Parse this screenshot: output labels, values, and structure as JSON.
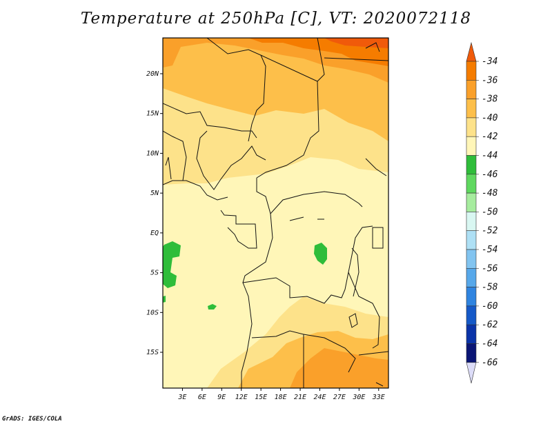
{
  "title": "Temperature at 250hPa [C], VT: 2020072118",
  "credit": "GrADS: IGES/COLA",
  "map": {
    "lon_labels": [
      "3E",
      "6E",
      "9E",
      "12E",
      "15E",
      "18E",
      "21E",
      "24E",
      "27E",
      "30E",
      "33E"
    ],
    "lat_labels": [
      "20N",
      "15N",
      "10N",
      "5N",
      "EQ",
      "5S",
      "10S",
      "15S"
    ],
    "lon_range": [
      0,
      34.5
    ],
    "lat_range": [
      -19.5,
      24.5
    ]
  },
  "colorbar": {
    "labels": [
      "-34",
      "-36",
      "-38",
      "-40",
      "-42",
      "-44",
      "-46",
      "-48",
      "-50",
      "-52",
      "-54",
      "-56",
      "-58",
      "-60",
      "-62",
      "-64",
      "-66"
    ],
    "colors": [
      "#f05a0a",
      "#f57c00",
      "#faa02a",
      "#fdbf4a",
      "#fde28a",
      "#fff6b8",
      "#2fbd3a",
      "#5fd85f",
      "#a6ec9e",
      "#d9f7f2",
      "#aee0f5",
      "#82c4f0",
      "#57a8ea",
      "#2f84e0",
      "#1559c8",
      "#0a33a8",
      "#0a1575",
      "#dcdcf8"
    ]
  }
}
